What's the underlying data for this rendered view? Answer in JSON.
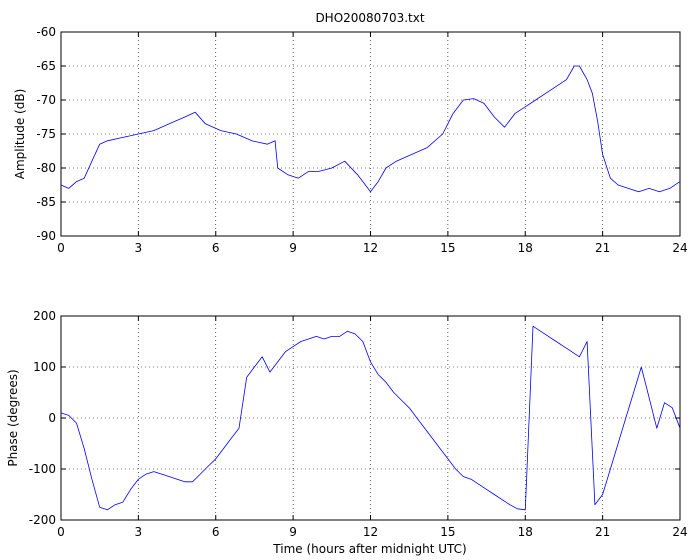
{
  "chart_data": [
    {
      "type": "line",
      "title": "DHO20080703.txt",
      "xlabel": "",
      "ylabel": "Amplitude (dB)",
      "xlim": [
        0,
        24
      ],
      "ylim": [
        -90,
        -60
      ],
      "xticks": [
        0,
        3,
        6,
        9,
        12,
        15,
        18,
        21,
        24
      ],
      "yticks": [
        -90,
        -85,
        -80,
        -75,
        -70,
        -65,
        -60
      ],
      "grid": true,
      "series": [
        {
          "color": "#0000ff",
          "x": [
            0,
            0.3,
            0.6,
            0.9,
            1.2,
            1.5,
            1.8,
            2.4,
            3,
            3.6,
            4.2,
            4.8,
            5.2,
            5.6,
            6.2,
            6.8,
            7.4,
            8,
            8.3,
            8.4,
            8.8,
            9.2,
            9.6,
            10,
            10.5,
            11,
            11.5,
            12,
            12.3,
            12.6,
            13,
            13.6,
            14.2,
            14.8,
            15.2,
            15.6,
            16,
            16.4,
            16.8,
            17.2,
            17.6,
            18,
            18.4,
            18.8,
            19.2,
            19.6,
            19.9,
            20.1,
            20.4,
            20.6,
            20.8,
            21,
            21.3,
            21.6,
            22,
            22.4,
            22.8,
            23.2,
            23.6,
            24
          ],
          "y": [
            -82.5,
            -83,
            -82,
            -81.5,
            -79,
            -76.5,
            -76,
            -75.5,
            -75,
            -74.5,
            -73.5,
            -72.5,
            -71.8,
            -73.5,
            -74.5,
            -75,
            -76,
            -76.5,
            -76,
            -80,
            -81,
            -81.5,
            -80.5,
            -80.5,
            -80,
            -79,
            -81,
            -83.5,
            -82,
            -80,
            -79,
            -78,
            -77,
            -75,
            -72,
            -70,
            -69.8,
            -70.5,
            -72.5,
            -74,
            -72,
            -71,
            -70,
            -69,
            -68,
            -67,
            -65,
            -65,
            -67,
            -69,
            -73,
            -78,
            -81.5,
            -82.5,
            -83,
            -83.5,
            -83,
            -83.5,
            -83,
            -82
          ]
        }
      ]
    },
    {
      "type": "line",
      "title": "",
      "xlabel": "Time (hours after midnight UTC)",
      "ylabel": "Phase (degrees)",
      "xlim": [
        0,
        24
      ],
      "ylim": [
        -200,
        200
      ],
      "xticks": [
        0,
        3,
        6,
        9,
        12,
        15,
        18,
        21,
        24
      ],
      "yticks": [
        -200,
        -100,
        0,
        100,
        200
      ],
      "grid": true,
      "series": [
        {
          "color": "#0000ff",
          "x": [
            0,
            0.3,
            0.6,
            0.9,
            1.2,
            1.5,
            1.8,
            2.1,
            2.4,
            2.7,
            3,
            3.3,
            3.6,
            3.9,
            4.2,
            4.5,
            4.8,
            5.1,
            5.4,
            5.7,
            6,
            6.3,
            6.6,
            6.9,
            7.2,
            7.5,
            7.8,
            8.1,
            8.4,
            8.7,
            9,
            9.3,
            9.6,
            9.9,
            10.2,
            10.5,
            10.8,
            11.1,
            11.4,
            11.7,
            12,
            12.3,
            12.6,
            12.9,
            13.2,
            13.5,
            13.8,
            14.1,
            14.4,
            14.7,
            15,
            15.3,
            15.6,
            15.9,
            16.2,
            16.5,
            16.8,
            17.1,
            17.4,
            17.7,
            18,
            18.3,
            18.6,
            18.9,
            19.2,
            19.5,
            19.8,
            20.1,
            20.4,
            20.7,
            21,
            21.3,
            21.6,
            21.9,
            22.2,
            22.5,
            22.8,
            23.1,
            23.4,
            23.7,
            24
          ],
          "y": [
            10,
            5,
            -10,
            -60,
            -120,
            -175,
            -180,
            -170,
            -165,
            -140,
            -120,
            -110,
            -105,
            -110,
            -115,
            -120,
            -125,
            -125,
            -110,
            -95,
            -80,
            -60,
            -40,
            -20,
            80,
            100,
            120,
            90,
            110,
            130,
            140,
            150,
            155,
            160,
            155,
            160,
            160,
            170,
            165,
            150,
            110,
            85,
            70,
            50,
            35,
            20,
            0,
            -20,
            -40,
            -60,
            -80,
            -100,
            -115,
            -120,
            -130,
            -140,
            -150,
            -160,
            -170,
            -178,
            -180,
            180,
            170,
            160,
            150,
            140,
            130,
            120,
            150,
            -170,
            -150,
            -100,
            -50,
            0,
            50,
            100,
            40,
            -20,
            30,
            20,
            -20
          ]
        }
      ]
    }
  ]
}
